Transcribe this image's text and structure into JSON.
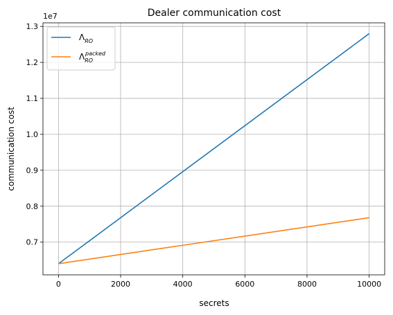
{
  "chart_data": {
    "type": "line",
    "title": "Dealer communication cost",
    "xlabel": "secrets",
    "ylabel": "communication cost",
    "y_scale_label": "1e7",
    "xlim": [
      -500,
      10500
    ],
    "ylim": [
      6.09,
      13.1
    ],
    "x_ticks": [
      0,
      2000,
      4000,
      6000,
      8000,
      10000
    ],
    "x_tick_labels": [
      "0",
      "2000",
      "4000",
      "6000",
      "8000",
      "10000"
    ],
    "y_ticks": [
      7.0,
      8.0,
      9.0,
      10.0,
      11.0,
      12.0,
      13.0
    ],
    "y_tick_labels": [
      "0.7",
      "0.8",
      "0.9",
      "1.0",
      "1.1",
      "1.2",
      "1.3"
    ],
    "grid": true,
    "legend_position": "upper-left",
    "series": [
      {
        "name": "Λ_RO",
        "legend": {
          "base": "Λ",
          "sup": "",
          "sub": "RO"
        },
        "color": "#1f77b4",
        "x": [
          0,
          10000
        ],
        "y": [
          6.4,
          12.8
        ]
      },
      {
        "name": "Λ_RO^packed",
        "legend": {
          "base": "Λ",
          "sup": "packed",
          "sub": "RO"
        },
        "color": "#ff7f0e",
        "x": [
          0,
          10000
        ],
        "y": [
          6.4,
          7.68
        ]
      }
    ]
  }
}
